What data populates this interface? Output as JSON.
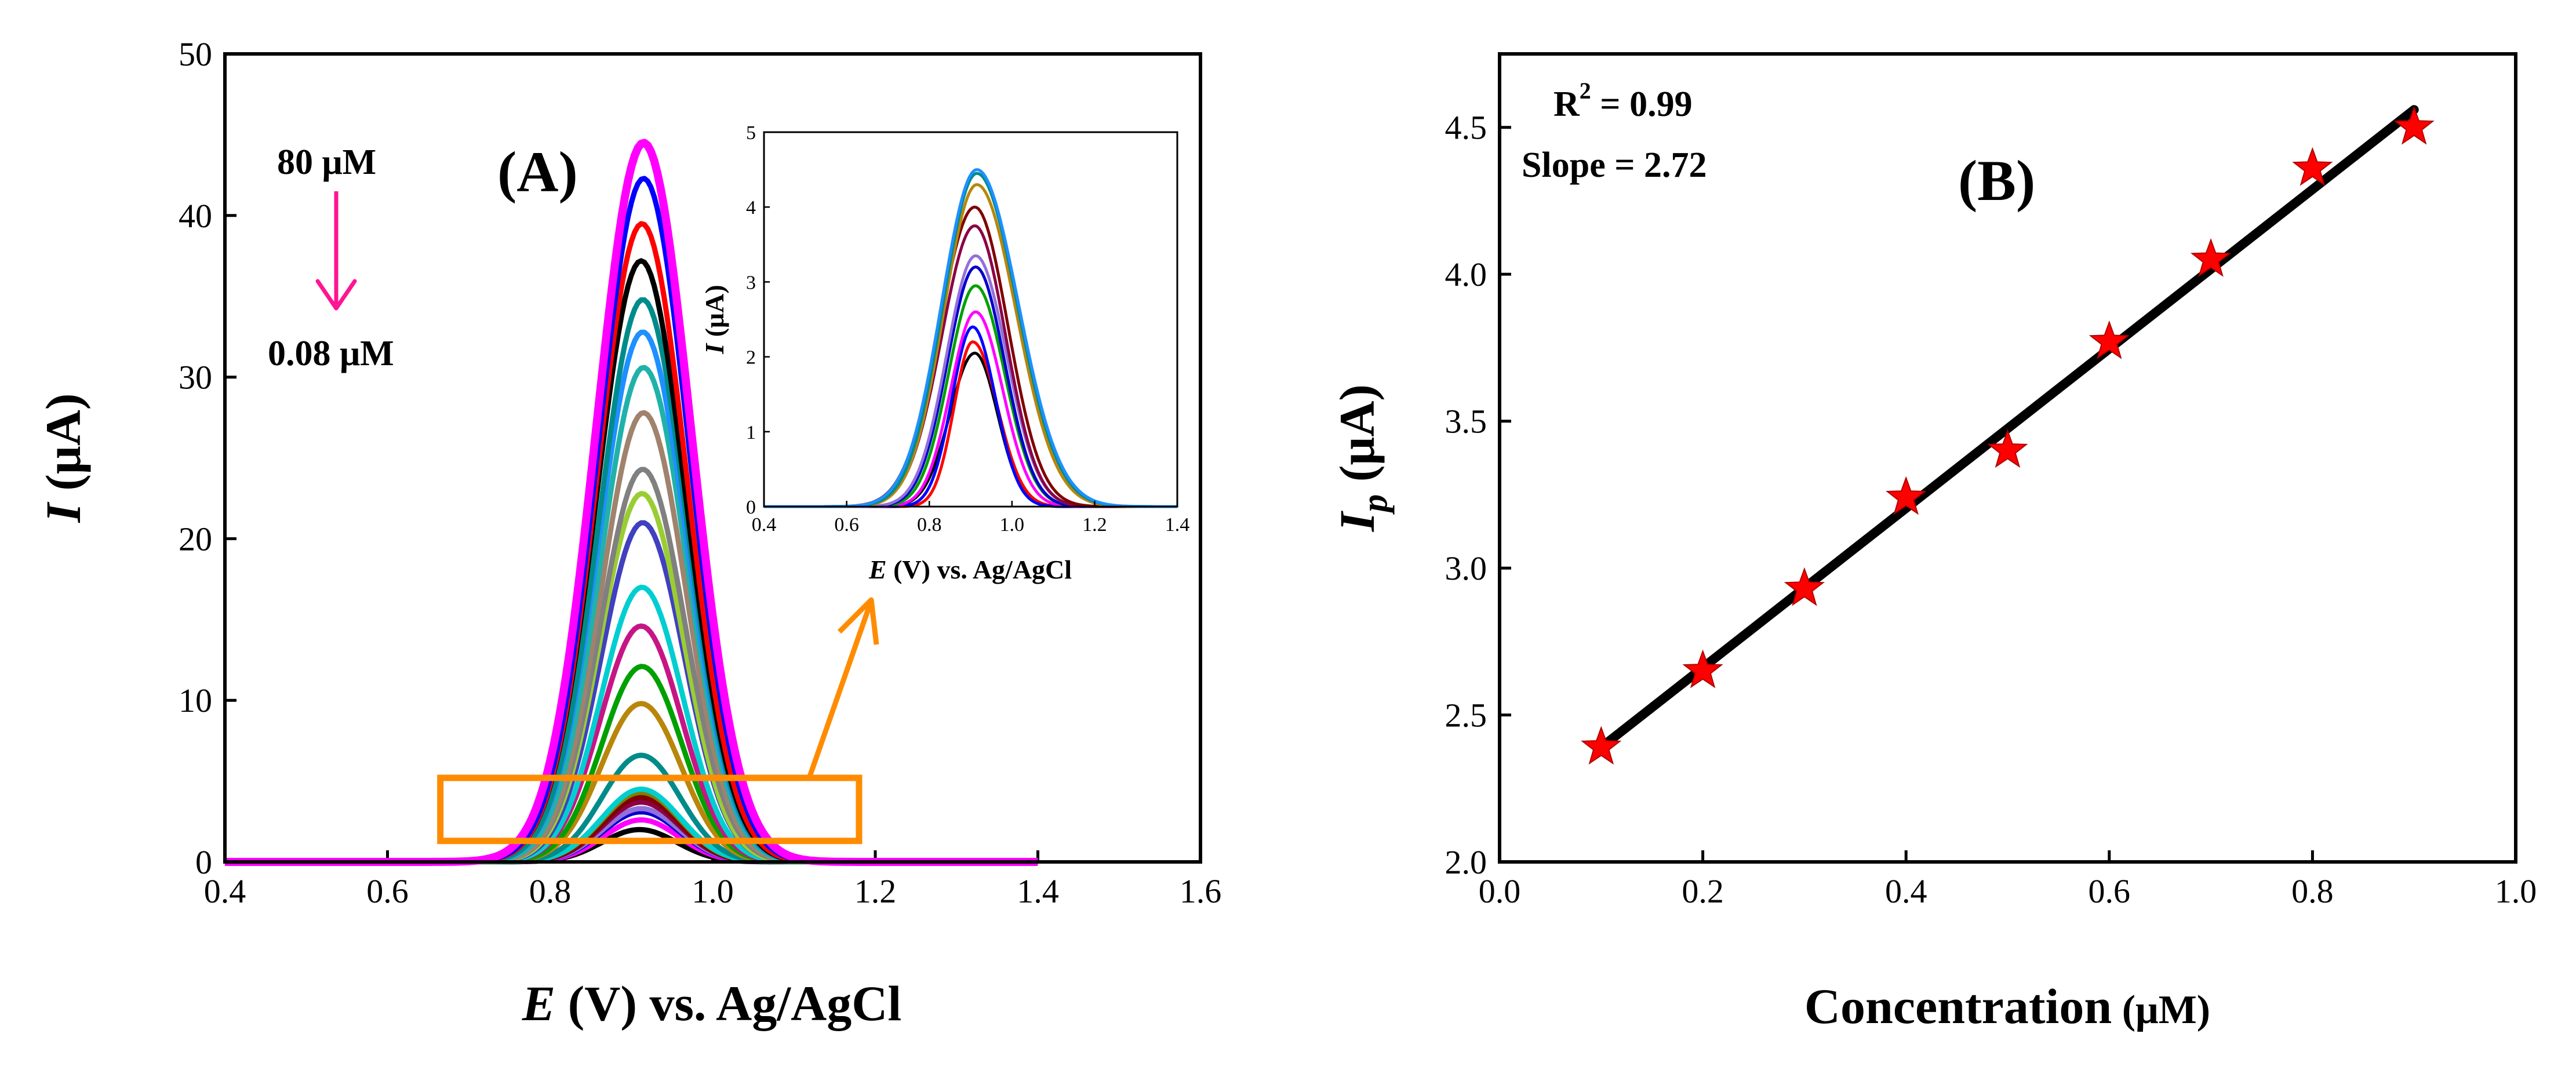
{
  "chart_data": [
    {
      "type": "line",
      "panel_label": "(A)",
      "xlabel_italic": "E",
      "xlabel_rest": " (V) vs. Ag/AgCl",
      "ylabel_italic": "I",
      "ylabel_rest": " (μA)",
      "xlim": [
        0.4,
        1.6
      ],
      "ylim": [
        0,
        50
      ],
      "x_ticks": [
        "0.4",
        "0.6",
        "0.8",
        "1.0",
        "1.2",
        "1.4",
        "1.6"
      ],
      "y_ticks": [
        "0",
        "10",
        "20",
        "30",
        "40",
        "50"
      ],
      "annotation_high": "80 μM",
      "annotation_low": "0.08 μM",
      "series": [
        {
          "name": "s1",
          "color": "#ff00ff",
          "peak_x": 0.915,
          "peak_y": 44.5,
          "sigma": 0.058
        },
        {
          "name": "s2",
          "color": "#0000ff",
          "peak_x": 0.915,
          "peak_y": 42.3,
          "sigma": 0.056
        },
        {
          "name": "s3",
          "color": "#ff0000",
          "peak_x": 0.913,
          "peak_y": 39.5,
          "sigma": 0.055
        },
        {
          "name": "s4",
          "color": "#000000",
          "peak_x": 0.912,
          "peak_y": 37.2,
          "sigma": 0.055
        },
        {
          "name": "s5",
          "color": "#008b8b",
          "peak_x": 0.914,
          "peak_y": 34.8,
          "sigma": 0.054
        },
        {
          "name": "s6",
          "color": "#1e90ff",
          "peak_x": 0.914,
          "peak_y": 32.8,
          "sigma": 0.054
        },
        {
          "name": "s7",
          "color": "#20b2aa",
          "peak_x": 0.915,
          "peak_y": 30.6,
          "sigma": 0.053
        },
        {
          "name": "s8",
          "color": "#a0826d",
          "peak_x": 0.915,
          "peak_y": 27.8,
          "sigma": 0.052
        },
        {
          "name": "s9",
          "color": "#808080",
          "peak_x": 0.914,
          "peak_y": 24.3,
          "sigma": 0.052
        },
        {
          "name": "s10",
          "color": "#9acd32",
          "peak_x": 0.913,
          "peak_y": 22.8,
          "sigma": 0.051
        },
        {
          "name": "s11",
          "color": "#4040c0",
          "peak_x": 0.914,
          "peak_y": 21.0,
          "sigma": 0.051
        },
        {
          "name": "s12",
          "color": "#00ced1",
          "peak_x": 0.913,
          "peak_y": 17.0,
          "sigma": 0.05
        },
        {
          "name": "s13",
          "color": "#c71585",
          "peak_x": 0.912,
          "peak_y": 14.6,
          "sigma": 0.05
        },
        {
          "name": "s14",
          "color": "#00a000",
          "peak_x": 0.913,
          "peak_y": 12.1,
          "sigma": 0.049
        },
        {
          "name": "s15",
          "color": "#b8860b",
          "peak_x": 0.912,
          "peak_y": 9.8,
          "sigma": 0.049
        },
        {
          "name": "s16",
          "color": "#008b8b",
          "peak_x": 0.912,
          "peak_y": 6.6,
          "sigma": 0.048
        },
        {
          "name": "s17",
          "color": "#00ced1",
          "peak_x": 0.912,
          "peak_y": 4.5,
          "sigma": 0.048
        },
        {
          "name": "s18",
          "color": "#808000",
          "peak_x": 0.912,
          "peak_y": 4.3,
          "sigma": 0.048
        },
        {
          "name": "s19",
          "color": "#800000",
          "peak_x": 0.912,
          "peak_y": 4.0,
          "sigma": 0.047
        },
        {
          "name": "s20",
          "color": "#8b0045",
          "peak_x": 0.912,
          "peak_y": 3.7,
          "sigma": 0.047
        },
        {
          "name": "s21",
          "color": "#9370db",
          "peak_x": 0.912,
          "peak_y": 3.3,
          "sigma": 0.047
        },
        {
          "name": "s22",
          "color": "#0000cd",
          "peak_x": 0.912,
          "peak_y": 3.1,
          "sigma": 0.047
        },
        {
          "name": "s23",
          "color": "#ff00ff",
          "peak_x": 0.912,
          "peak_y": 2.6,
          "sigma": 0.046
        },
        {
          "name": "s24",
          "color": "#000000",
          "peak_x": 0.91,
          "peak_y": 2.0,
          "sigma": 0.046
        }
      ],
      "zoom_box_x": [
        0.665,
        1.18
      ],
      "zoom_box_y": [
        1.3,
        5.2
      ],
      "box_color": "#ff8c00",
      "arrow_color": "#ff1493",
      "inset": {
        "type": "line",
        "xlabel_italic": "E",
        "xlabel_rest": " (V) vs. Ag/AgCl",
        "ylabel_italic": "I",
        "ylabel_rest": " (μA)",
        "xlim": [
          0.4,
          1.4
        ],
        "ylim": [
          0,
          5
        ],
        "x_ticks": [
          "0.4",
          "0.6",
          "0.8",
          "1.0",
          "1.2",
          "1.4"
        ],
        "y_ticks": [
          "0",
          "1",
          "2",
          "3",
          "4",
          "5"
        ],
        "series": [
          {
            "name": "i1",
            "color": "#1e90ff",
            "peak_x": 0.915,
            "peak_y": 4.5,
            "sl": 0.085,
            "sr": 0.1
          },
          {
            "name": "i2",
            "color": "#008b8b",
            "peak_x": 0.915,
            "peak_y": 4.45,
            "sl": 0.082,
            "sr": 0.098
          },
          {
            "name": "i3",
            "color": "#b8860b",
            "peak_x": 0.915,
            "peak_y": 4.3,
            "sl": 0.08,
            "sr": 0.095
          },
          {
            "name": "i4",
            "color": "#800000",
            "peak_x": 0.91,
            "peak_y": 4.0,
            "sl": 0.085,
            "sr": 0.08
          },
          {
            "name": "i5",
            "color": "#8b0045",
            "peak_x": 0.91,
            "peak_y": 3.75,
            "sl": 0.08,
            "sr": 0.075
          },
          {
            "name": "i6",
            "color": "#9370db",
            "peak_x": 0.912,
            "peak_y": 3.35,
            "sl": 0.07,
            "sr": 0.075
          },
          {
            "name": "i7",
            "color": "#0000cd",
            "peak_x": 0.912,
            "peak_y": 3.2,
            "sl": 0.068,
            "sr": 0.07
          },
          {
            "name": "i8",
            "color": "#00a000",
            "peak_x": 0.912,
            "peak_y": 2.95,
            "sl": 0.065,
            "sr": 0.07
          },
          {
            "name": "i9",
            "color": "#ff00ff",
            "peak_x": 0.912,
            "peak_y": 2.6,
            "sl": 0.06,
            "sr": 0.065
          },
          {
            "name": "i10",
            "color": "#0000ff",
            "peak_x": 0.905,
            "peak_y": 2.4,
            "sl": 0.05,
            "sr": 0.055
          },
          {
            "name": "i11",
            "color": "#ff0000",
            "peak_x": 0.905,
            "peak_y": 2.2,
            "sl": 0.045,
            "sr": 0.06
          },
          {
            "name": "i12",
            "color": "#000000",
            "peak_x": 0.91,
            "peak_y": 2.05,
            "sl": 0.06,
            "sr": 0.055
          }
        ]
      }
    },
    {
      "type": "scatter",
      "panel_label": "(B)",
      "xlabel": "Concentration",
      "xlabel_unit": " (μM)",
      "ylabel_italic": "I",
      "ylabel_sub": "p",
      "ylabel_rest": " (μA)",
      "xlim": [
        0.0,
        1.0
      ],
      "ylim": [
        2.0,
        4.75
      ],
      "x_ticks": [
        "0.0",
        "0.2",
        "0.4",
        "0.6",
        "0.8",
        "1.0"
      ],
      "y_ticks": [
        "2.0",
        "2.5",
        "3.0",
        "3.5",
        "4.0",
        "4.5"
      ],
      "x": [
        0.1,
        0.2,
        0.3,
        0.4,
        0.5,
        0.6,
        0.7,
        0.8,
        0.9
      ],
      "y": [
        2.39,
        2.65,
        2.93,
        3.24,
        3.4,
        3.77,
        4.05,
        4.36,
        4.5
      ],
      "marker": "star",
      "marker_color": "#ff0000",
      "fit": {
        "x": [
          0.1,
          0.9
        ],
        "y": [
          2.39,
          4.56
        ],
        "color": "#000000"
      },
      "r2_label": "R",
      "r2_sup": "2",
      "r2_value": " = 0.99",
      "slope_label": "Slope = 2.72"
    }
  ]
}
